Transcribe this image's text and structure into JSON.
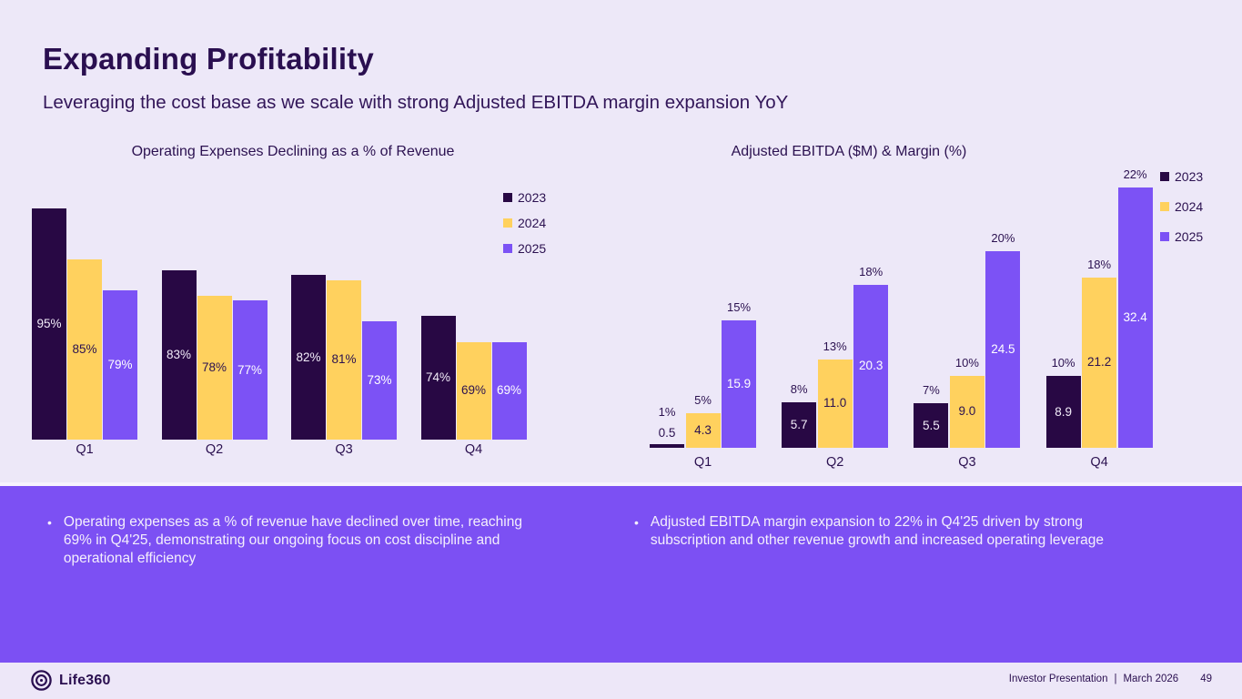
{
  "slide": {
    "title": "Expanding Profitability",
    "subtitle": "Leveraging the cost base as we scale with strong Adjusted EBITDA margin expansion YoY"
  },
  "colors": {
    "background": "#EDE8F8",
    "band": "#7C50F3",
    "text": "#2B1150",
    "series": {
      "2023": "#280844",
      "2024": "#FFD15E",
      "2025": "#7C52F5"
    },
    "value_label": {
      "2023": "#F2ECF9",
      "2024": "#2B1150",
      "2025": "#FFFFFF"
    }
  },
  "legend": [
    "2023",
    "2024",
    "2025"
  ],
  "chart_data": [
    {
      "type": "bar",
      "title": "Operating Expenses Declining as a % of Revenue",
      "categories": [
        "Q1",
        "Q2",
        "Q3",
        "Q4"
      ],
      "series": [
        {
          "name": "2023",
          "values": [
            95,
            83,
            82,
            74
          ],
          "labels": [
            "95%",
            "83%",
            "82%",
            "74%"
          ]
        },
        {
          "name": "2024",
          "values": [
            85,
            78,
            81,
            69
          ],
          "labels": [
            "85%",
            "78%",
            "81%",
            "69%"
          ]
        },
        {
          "name": "2025",
          "values": [
            79,
            77,
            73,
            69
          ],
          "labels": [
            "79%",
            "77%",
            "73%",
            "69%"
          ]
        }
      ],
      "unit": "percent of revenue",
      "ylim": [
        50,
        100
      ],
      "grid": false,
      "legend_position": "upper-right"
    },
    {
      "type": "bar",
      "title": "Adjusted EBITDA ($M) & Margin (%)",
      "categories": [
        "Q1",
        "Q2",
        "Q3",
        "Q4"
      ],
      "series": [
        {
          "name": "2023",
          "values": [
            0.5,
            5.7,
            5.5,
            8.9
          ],
          "labels": [
            "0.5",
            "5.7",
            "5.5",
            "8.9"
          ],
          "margins": [
            "1%",
            "8%",
            "7%",
            "10%"
          ]
        },
        {
          "name": "2024",
          "values": [
            4.3,
            11.0,
            9.0,
            21.2
          ],
          "labels": [
            "4.3",
            "11.0",
            "9.0",
            "21.2"
          ],
          "margins": [
            "5%",
            "13%",
            "10%",
            "18%"
          ]
        },
        {
          "name": "2025",
          "values": [
            15.9,
            20.3,
            24.5,
            32.4
          ],
          "labels": [
            "15.9",
            "20.3",
            "24.5",
            "32.4"
          ],
          "margins": [
            "15%",
            "18%",
            "20%",
            "22%"
          ]
        }
      ],
      "unit": "$M (margin % above bars)",
      "ylim": [
        0,
        33
      ],
      "grid": false,
      "legend_position": "upper-right"
    }
  ],
  "bullets": {
    "left": "Operating expenses as a % of revenue have declined over time, reaching 69% in Q4'25, demonstrating our ongoing focus on cost discipline and operational efficiency",
    "right": "Adjusted EBITDA margin expansion to 22% in Q4'25 driven by strong subscription and other revenue growth and increased operating leverage",
    "marker": "•"
  },
  "footer": {
    "brand": "Life360",
    "label": "Investor Presentation",
    "divider": "|",
    "date": "March 2026",
    "page": "49"
  }
}
